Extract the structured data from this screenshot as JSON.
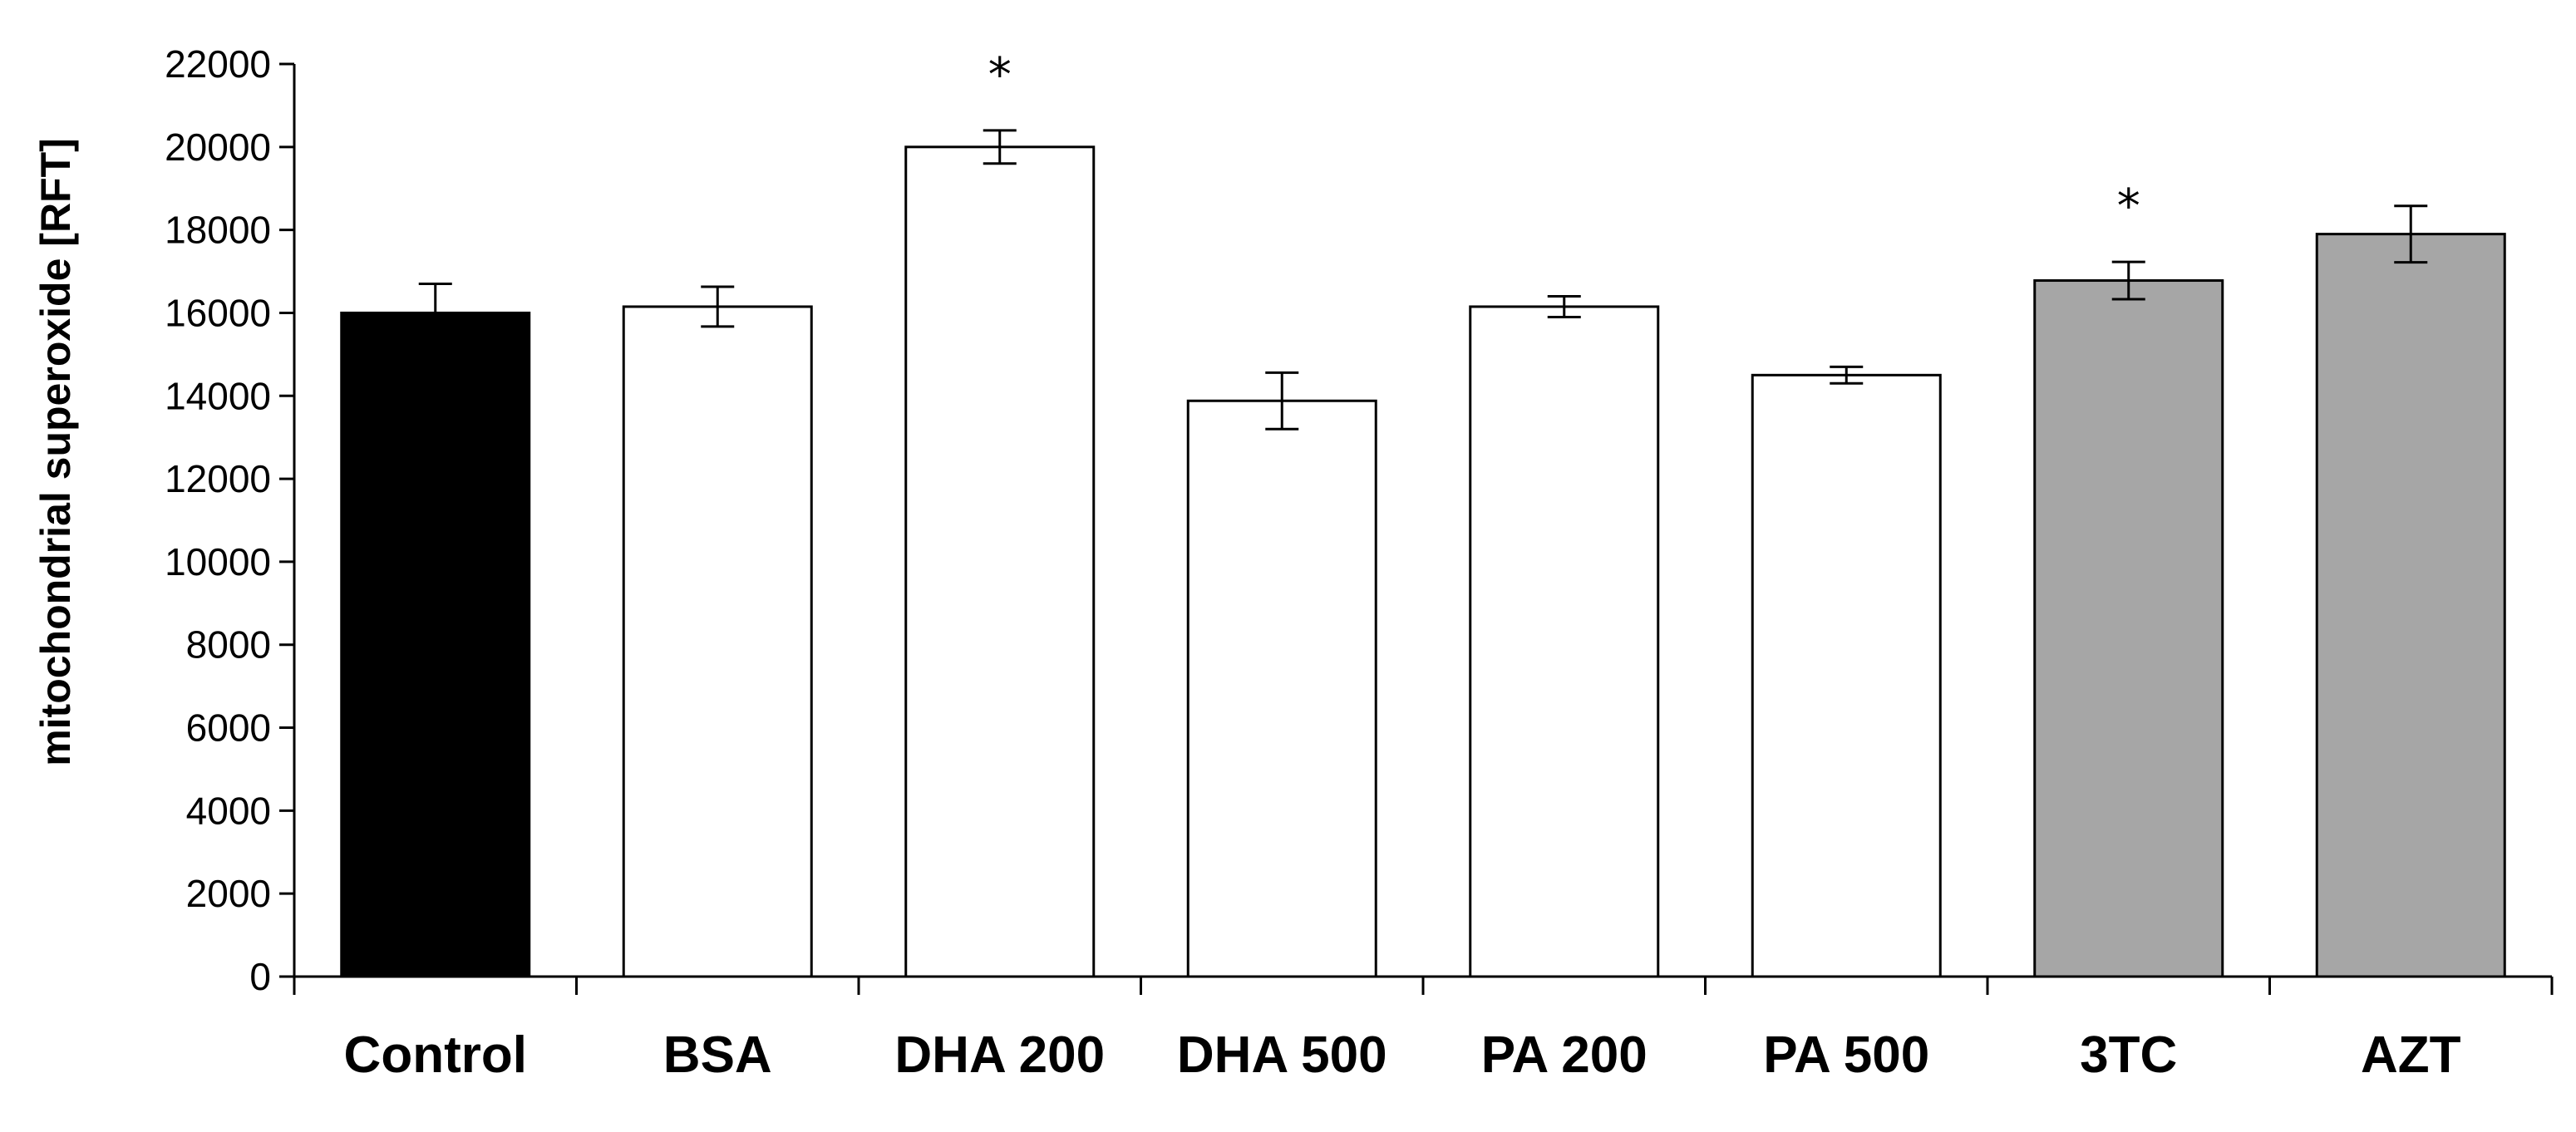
{
  "chart_data": {
    "type": "bar",
    "ylabel": "mitochondrial superoxide [RFT]",
    "xlabel": "",
    "ylim": [
      0,
      22000
    ],
    "yticks": [
      0,
      2000,
      4000,
      6000,
      8000,
      10000,
      12000,
      14000,
      16000,
      18000,
      20000,
      22000
    ],
    "categories": [
      "Control",
      "BSA",
      "DHA 200",
      "DHA 500",
      "PA 200",
      "PA 500",
      "3TC",
      "AZT"
    ],
    "values": [
      16000,
      16150,
      20000,
      13880,
      16150,
      14500,
      16780,
      17900
    ],
    "error": [
      700,
      480,
      400,
      680,
      250,
      200,
      450,
      680
    ],
    "error_style": [
      "upper",
      "both",
      "both",
      "both",
      "both",
      "both",
      "both",
      "both"
    ],
    "bar_colors": [
      "#000000",
      "#ffffff",
      "#ffffff",
      "#ffffff",
      "#ffffff",
      "#ffffff",
      "#a6a6a6",
      "#a6a6a6"
    ],
    "annotations": [
      {
        "category": "DHA 200",
        "text": "*"
      },
      {
        "category": "3TC",
        "text": "*"
      }
    ],
    "grid": false,
    "legend": "none"
  }
}
